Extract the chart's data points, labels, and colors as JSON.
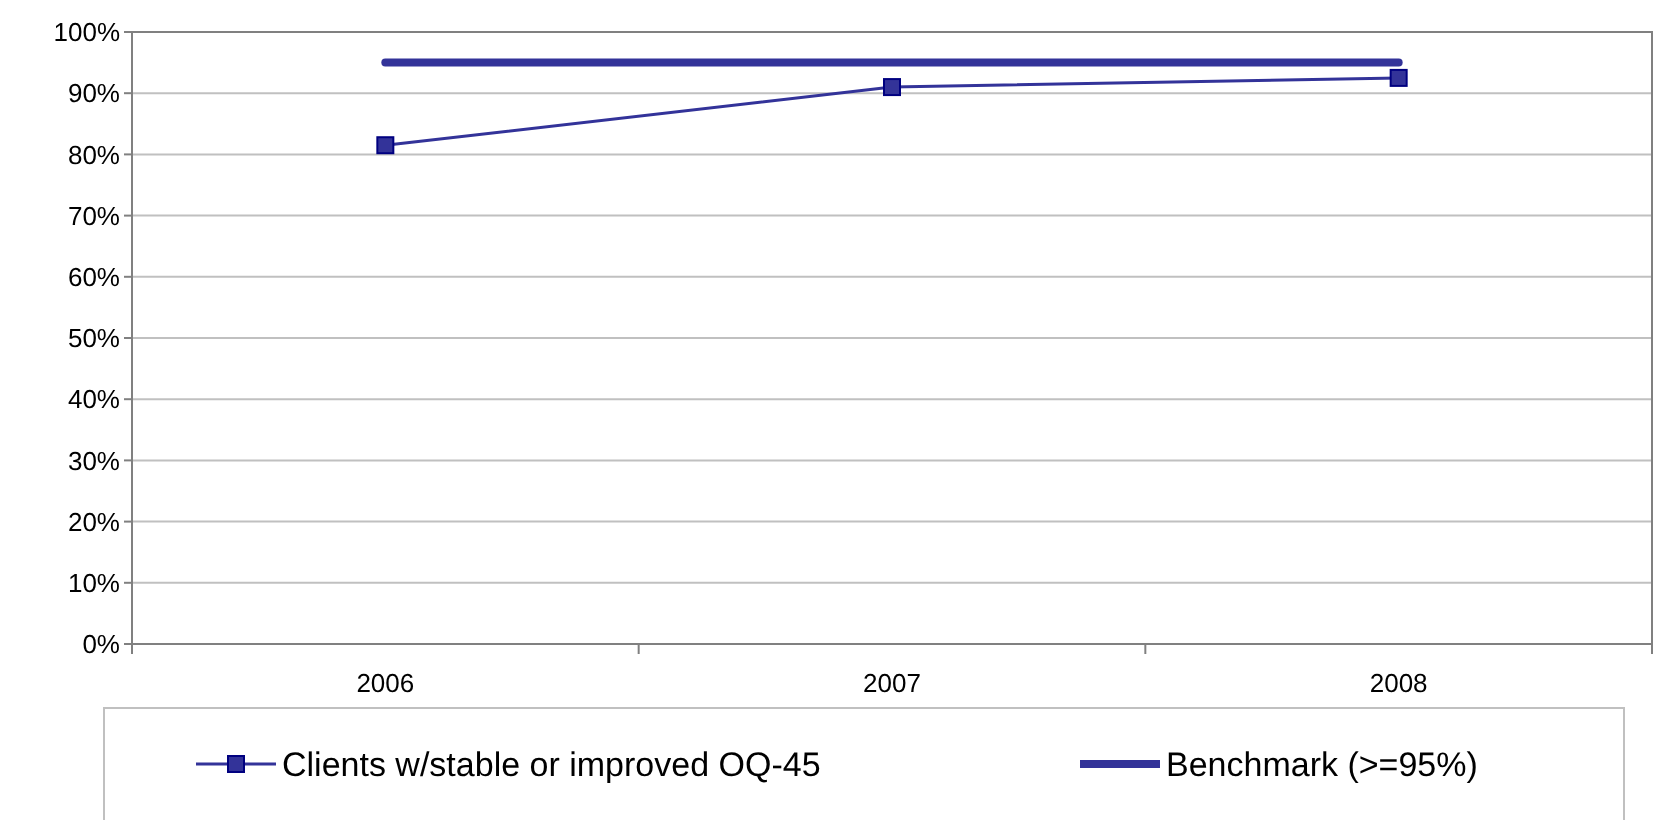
{
  "chart_data": {
    "type": "line",
    "categories": [
      "2006",
      "2007",
      "2008"
    ],
    "series": [
      {
        "name": "Clients w/stable or improved OQ-45",
        "color": "#333399",
        "values": [
          81.5,
          91,
          92.5
        ],
        "marker": "square"
      },
      {
        "name": "Benchmark (>=95%)",
        "color": "#333399",
        "values": [
          95,
          95,
          95
        ],
        "marker": "none"
      }
    ],
    "ylim": [
      0,
      100
    ],
    "yticks": [
      {
        "value": 0,
        "label": "0%"
      },
      {
        "value": 10,
        "label": "10%"
      },
      {
        "value": 20,
        "label": "20%"
      },
      {
        "value": 30,
        "label": "30%"
      },
      {
        "value": 40,
        "label": "40%"
      },
      {
        "value": 50,
        "label": "50%"
      },
      {
        "value": 60,
        "label": "60%"
      },
      {
        "value": 70,
        "label": "70%"
      },
      {
        "value": 80,
        "label": "80%"
      },
      {
        "value": 90,
        "label": "90%"
      },
      {
        "value": 100,
        "label": "100%"
      }
    ],
    "grid": "y",
    "legend": "bottom"
  }
}
